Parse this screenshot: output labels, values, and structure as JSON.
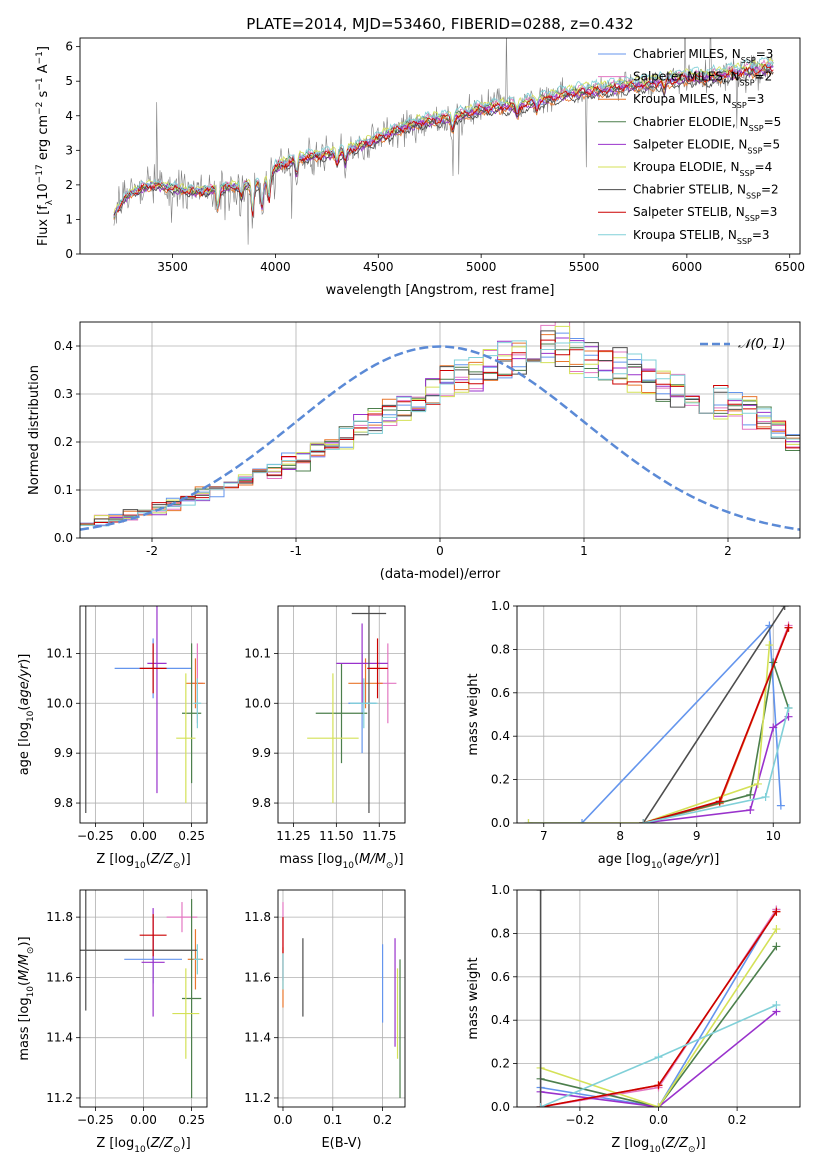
{
  "figure": {
    "title": "PLATE=2014, MJD=53460, FIBERID=0288, z=0.432"
  },
  "chart_data": [
    {
      "id": "spectrum",
      "type": "line",
      "xlabel": "wavelength [Angstrom, rest frame]",
      "ylabel": "Flux [f_λ 10^-17 erg cm^-2 s^-1 A^-1]",
      "xlim": [
        3050,
        6550
      ],
      "ylim": [
        0,
        6.25
      ],
      "xticks": [
        3500,
        4000,
        4500,
        5000,
        5500,
        6000,
        6500
      ],
      "yticks": [
        0,
        1,
        2,
        3,
        4,
        5,
        6
      ],
      "legend_position": "top-right",
      "data_color": "#7f7f7f",
      "data_x_range": [
        3215,
        6420
      ],
      "model_x_range": [
        3215,
        6420
      ],
      "model_shape": [
        [
          3215,
          1.15
        ],
        [
          3280,
          1.7
        ],
        [
          3350,
          1.9
        ],
        [
          3400,
          2.0
        ],
        [
          3500,
          1.9
        ],
        [
          3600,
          1.8
        ],
        [
          3700,
          1.85
        ],
        [
          3800,
          1.95
        ],
        [
          3900,
          2.0
        ],
        [
          3950,
          2.05
        ],
        [
          4000,
          2.5
        ],
        [
          4100,
          2.75
        ],
        [
          4200,
          2.85
        ],
        [
          4300,
          2.9
        ],
        [
          4400,
          3.1
        ],
        [
          4500,
          3.35
        ],
        [
          4600,
          3.6
        ],
        [
          4700,
          3.8
        ],
        [
          4800,
          3.9
        ],
        [
          4900,
          4.0
        ],
        [
          5000,
          4.2
        ],
        [
          5100,
          4.25
        ],
        [
          5200,
          4.3
        ],
        [
          5300,
          4.45
        ],
        [
          5400,
          4.6
        ],
        [
          5500,
          4.7
        ],
        [
          5600,
          4.75
        ],
        [
          5700,
          4.85
        ],
        [
          5800,
          4.9
        ],
        [
          5900,
          5.0
        ],
        [
          6000,
          5.1
        ],
        [
          6100,
          5.1
        ],
        [
          6200,
          5.2
        ],
        [
          6300,
          5.3
        ],
        [
          6420,
          5.4
        ]
      ],
      "series": [
        {
          "name": "Chabrier MILES, N_SSP=3",
          "label_main": "Chabrier MILES, N",
          "label_sub": "SSP",
          "label_tail": "=3",
          "color": "#6495ed",
          "offset": 0.0
        },
        {
          "name": "Salpeter MILES, N_SSP=2",
          "label_main": "Salpeter MILES, N",
          "label_sub": "SSP",
          "label_tail": "=2",
          "color": "#e377c2",
          "offset": 0.02
        },
        {
          "name": "Kroupa MILES, N_SSP=3",
          "label_main": "Kroupa MILES, N",
          "label_sub": "SSP",
          "label_tail": "=3",
          "color": "#e8762c",
          "offset": -0.02
        },
        {
          "name": "Chabrier ELODIE, N_SSP=5",
          "label_main": "Chabrier ELODIE, N",
          "label_sub": "SSP",
          "label_tail": "=5",
          "color": "#4c7f4c",
          "offset": 0.01
        },
        {
          "name": "Salpeter ELODIE, N_SSP=5",
          "label_main": "Salpeter ELODIE, N",
          "label_sub": "SSP",
          "label_tail": "=5",
          "color": "#9932cc",
          "offset": -0.01
        },
        {
          "name": "Kroupa ELODIE, N_SSP=4",
          "label_main": "Kroupa ELODIE, N",
          "label_sub": "SSP",
          "label_tail": "=4",
          "color": "#d4e157",
          "offset": 0.03
        },
        {
          "name": "Chabrier STELIB, N_SSP=2",
          "label_main": "Chabrier STELIB, N",
          "label_sub": "SSP",
          "label_tail": "=2",
          "color": "#4d4d4d",
          "offset": -0.03
        },
        {
          "name": "Salpeter STELIB, N_SSP=3",
          "label_main": "Salpeter STELIB, N",
          "label_sub": "SSP",
          "label_tail": "=3",
          "color": "#cc0000",
          "offset": 0.0
        },
        {
          "name": "Kroupa STELIB, N_SSP=3",
          "label_main": "Kroupa STELIB, N",
          "label_sub": "SSP",
          "label_tail": "=3",
          "color": "#80d0d8",
          "offset": 0.04
        }
      ]
    },
    {
      "id": "residuals",
      "type": "histogram",
      "xlabel": "(data-model)/error",
      "ylabel": "Normed distribution",
      "xlim": [
        -2.5,
        2.5
      ],
      "ylim": [
        0,
        0.45
      ],
      "xticks": [
        -2,
        -1,
        0,
        1,
        2
      ],
      "yticks": [
        0.0,
        0.1,
        0.2,
        0.3,
        0.4
      ],
      "grid": true,
      "legend_position": "top-right",
      "legend": "𝒩(0, 1)",
      "gaussian": {
        "mean": 0,
        "sigma": 1,
        "color": "#5b8ad6"
      },
      "bin_width": 0.1,
      "bin_start": -2.5,
      "base_values": [
        0.03,
        0.035,
        0.04,
        0.045,
        0.05,
        0.06,
        0.07,
        0.08,
        0.09,
        0.1,
        0.11,
        0.12,
        0.13,
        0.14,
        0.15,
        0.16,
        0.18,
        0.2,
        0.21,
        0.23,
        0.25,
        0.26,
        0.27,
        0.29,
        0.3,
        0.32,
        0.33,
        0.34,
        0.35,
        0.36,
        0.37,
        0.38,
        0.39,
        0.4,
        0.38,
        0.37,
        0.36,
        0.35,
        0.34,
        0.33,
        0.32,
        0.31,
        0.3,
        0.29,
        0.28,
        0.27,
        0.26,
        0.24,
        0.22,
        0.2,
        0.19,
        0.18,
        0.17,
        0.16,
        0.15,
        0.14,
        0.13,
        0.12,
        0.11,
        0.1,
        0.095,
        0.09,
        0.085,
        0.08,
        0.075,
        0.07,
        0.065,
        0.06,
        0.055,
        0.05
      ]
    },
    {
      "id": "age-vs-Z",
      "type": "errorbar",
      "xlabel_main": "Z [log",
      "xlabel_sub": "10",
      "xlabel_tail": "(Z/Z",
      "xlabel": "Z [log10(Z/Z⊙)]",
      "ylabel": "age [log10(age/yr)]",
      "xlim": [
        -0.33,
        0.33
      ],
      "ylim": [
        9.76,
        10.195
      ],
      "xticks": [
        -0.25,
        0.0,
        0.25
      ],
      "xtick_labels": [
        "−0.25",
        "0.00",
        "0.25"
      ],
      "yticks": [
        9.8,
        9.9,
        10.0,
        10.1
      ],
      "points": [
        {
          "color": "#6495ed",
          "x": 0.05,
          "xerr": 0.2,
          "y": 10.07,
          "yerr": 0.06
        },
        {
          "color": "#e377c2",
          "x": 0.28,
          "xerr": 0.03,
          "y": 10.04,
          "yerr": 0.08
        },
        {
          "color": "#e8762c",
          "x": 0.27,
          "xerr": 0.05,
          "y": 10.04,
          "yerr": 0.05
        },
        {
          "color": "#4c7f4c",
          "x": 0.25,
          "xerr": 0.05,
          "y": 9.98,
          "yerr": 0.14
        },
        {
          "color": "#9932cc",
          "x": 0.07,
          "xerr": 0.05,
          "y": 10.08,
          "yerr": 0.26
        },
        {
          "color": "#d4e157",
          "x": 0.22,
          "xerr": 0.05,
          "y": 9.93,
          "yerr": 0.13
        },
        {
          "color": "#4d4d4d",
          "x": -0.3,
          "xerr": 0.0,
          "y": 10.18,
          "yerr": 0.4
        },
        {
          "color": "#cc0000",
          "x": 0.05,
          "xerr": 0.07,
          "y": 10.07,
          "yerr": 0.05
        },
        {
          "color": "#80d0d8",
          "x": 0.28,
          "xerr": 0.02,
          "y": 10.0,
          "yerr": 0.05
        }
      ]
    },
    {
      "id": "age-vs-mass",
      "type": "errorbar",
      "xlabel": "mass [log10(M/M⊙)]",
      "xlim": [
        11.16,
        11.9
      ],
      "ylim": [
        9.76,
        10.195
      ],
      "xticks": [
        11.25,
        11.5,
        11.75
      ],
      "xtick_labels": [
        "11.25",
        "11.50",
        "11.75"
      ],
      "yticks": [
        9.8,
        9.9,
        10.0,
        10.1
      ],
      "points": [
        {
          "color": "#6495ed",
          "x": 11.65,
          "xerr": 0.08,
          "y": 10.0,
          "yerr": 0.1
        },
        {
          "color": "#e377c2",
          "x": 11.8,
          "xerr": 0.05,
          "y": 10.04,
          "yerr": 0.08
        },
        {
          "color": "#e8762c",
          "x": 11.67,
          "xerr": 0.1,
          "y": 10.04,
          "yerr": 0.05
        },
        {
          "color": "#4c7f4c",
          "x": 11.53,
          "xerr": 0.15,
          "y": 9.98,
          "yerr": 0.1
        },
        {
          "color": "#9932cc",
          "x": 11.65,
          "xerr": 0.15,
          "y": 10.08,
          "yerr": 0.08
        },
        {
          "color": "#d4e157",
          "x": 11.48,
          "xerr": 0.15,
          "y": 9.93,
          "yerr": 0.13
        },
        {
          "color": "#4d4d4d",
          "x": 11.69,
          "xerr": 0.1,
          "y": 10.18,
          "yerr": 0.4
        },
        {
          "color": "#cc0000",
          "x": 11.74,
          "xerr": 0.06,
          "y": 10.07,
          "yerr": 0.06
        },
        {
          "color": "#80d0d8",
          "x": 11.66,
          "xerr": 0.08,
          "y": 10.0,
          "yerr": 0.05
        }
      ]
    },
    {
      "id": "mass-weight-vs-age",
      "type": "line",
      "xlabel": "age [log10(age/yr)]",
      "ylabel": "mass weight",
      "xlim": [
        6.65,
        10.35
      ],
      "ylim": [
        0,
        1
      ],
      "xticks": [
        7,
        8,
        9,
        10
      ],
      "yticks": [
        0.0,
        0.2,
        0.4,
        0.6,
        0.8,
        1.0
      ],
      "grid": true,
      "series": [
        {
          "color": "#6495ed",
          "x": [
            6.8,
            7.5,
            9.95,
            10.1
          ],
          "y": [
            0,
            0,
            0.91,
            0.08
          ]
        },
        {
          "color": "#e377c2",
          "x": [
            8.3,
            9.3,
            10.2
          ],
          "y": [
            0,
            0.09,
            0.91
          ]
        },
        {
          "color": "#e8762c",
          "x": [
            8.3,
            9.3,
            10.2
          ],
          "y": [
            0,
            0.09,
            0.9
          ]
        },
        {
          "color": "#4c7f4c",
          "x": [
            8.3,
            9.7,
            10.0,
            10.2
          ],
          "y": [
            0,
            0.13,
            0.74,
            0.53
          ]
        },
        {
          "color": "#9932cc",
          "x": [
            8.3,
            9.7,
            10.0,
            10.2
          ],
          "y": [
            0,
            0.06,
            0.44,
            0.49
          ]
        },
        {
          "color": "#d4e157",
          "x": [
            6.8,
            8.3,
            9.8,
            9.95
          ],
          "y": [
            0,
            0,
            0.18,
            0.82
          ]
        },
        {
          "color": "#4d4d4d",
          "x": [
            8.3,
            10.15
          ],
          "y": [
            0,
            1.0
          ]
        },
        {
          "color": "#cc0000",
          "x": [
            8.3,
            9.3,
            10.2
          ],
          "y": [
            0,
            0.1,
            0.9
          ]
        },
        {
          "color": "#80d0d8",
          "x": [
            8.3,
            9.9,
            10.2
          ],
          "y": [
            0,
            0.12,
            0.53
          ]
        }
      ]
    },
    {
      "id": "mass-vs-Z",
      "type": "errorbar",
      "xlabel": "Z [log10(Z/Z⊙)]",
      "ylabel": "mass [log10(M/M⊙)]",
      "xlim": [
        -0.33,
        0.33
      ],
      "ylim": [
        11.17,
        11.89
      ],
      "xticks": [
        -0.25,
        0.0,
        0.25
      ],
      "xtick_labels": [
        "−0.25",
        "0.00",
        "0.25"
      ],
      "yticks": [
        11.2,
        11.4,
        11.6,
        11.8
      ],
      "points": [
        {
          "color": "#6495ed",
          "x": 0.05,
          "xerr": 0.15,
          "y": 11.66,
          "yerr": 0.08
        },
        {
          "color": "#e377c2",
          "x": 0.2,
          "xerr": 0.08,
          "y": 11.8,
          "yerr": 0.05
        },
        {
          "color": "#e8762c",
          "x": 0.27,
          "xerr": 0.04,
          "y": 11.66,
          "yerr": 0.1
        },
        {
          "color": "#4c7f4c",
          "x": 0.25,
          "xerr": 0.05,
          "y": 11.53,
          "yerr": 0.33
        },
        {
          "color": "#9932cc",
          "x": 0.05,
          "xerr": 0.06,
          "y": 11.65,
          "yerr": 0.18
        },
        {
          "color": "#d4e157",
          "x": 0.22,
          "xerr": 0.07,
          "y": 11.48,
          "yerr": 0.15
        },
        {
          "color": "#4d4d4d",
          "x": -0.3,
          "xerr": 0.58,
          "y": 11.69,
          "yerr": 0.2
        },
        {
          "color": "#cc0000",
          "x": 0.05,
          "xerr": 0.07,
          "y": 11.74,
          "yerr": 0.07
        },
        {
          "color": "#80d0d8",
          "x": 0.28,
          "xerr": 0.02,
          "y": 11.66,
          "yerr": 0.05
        }
      ]
    },
    {
      "id": "mass-vs-EBV",
      "type": "errorbar",
      "xlabel": "E(B-V)",
      "xlim": [
        -0.01,
        0.245
      ],
      "ylim": [
        11.17,
        11.89
      ],
      "xticks": [
        0.0,
        0.1,
        0.2
      ],
      "xtick_labels": [
        "0.0",
        "0.1",
        "0.2"
      ],
      "yticks": [
        11.2,
        11.4,
        11.6,
        11.8
      ],
      "points": [
        {
          "color": "#6495ed",
          "x": 0.2,
          "xerr": 0,
          "y": 11.58,
          "yerr": 0.13
        },
        {
          "color": "#e377c2",
          "x": 0.0,
          "xerr": 0,
          "y": 11.72,
          "yerr": 0.13
        },
        {
          "color": "#e8762c",
          "x": 0.0,
          "xerr": 0,
          "y": 11.6,
          "yerr": 0.1
        },
        {
          "color": "#4c7f4c",
          "x": 0.235,
          "xerr": 0,
          "y": 11.43,
          "yerr": 0.23
        },
        {
          "color": "#9932cc",
          "x": 0.225,
          "xerr": 0,
          "y": 11.55,
          "yerr": 0.18
        },
        {
          "color": "#d4e157",
          "x": 0.23,
          "xerr": 0,
          "y": 11.48,
          "yerr": 0.15
        },
        {
          "color": "#4d4d4d",
          "x": 0.04,
          "xerr": 0,
          "y": 11.6,
          "yerr": 0.13
        },
        {
          "color": "#cc0000",
          "x": 0.0,
          "xerr": 0,
          "y": 11.74,
          "yerr": 0.06
        },
        {
          "color": "#80d0d8",
          "x": 0.0,
          "xerr": 0,
          "y": 11.62,
          "yerr": 0.06
        }
      ]
    },
    {
      "id": "mass-weight-vs-Z",
      "type": "line",
      "xlabel": "Z [log10(Z/Z⊙)]",
      "ylabel": "mass weight",
      "xlim": [
        -0.36,
        0.36
      ],
      "ylim": [
        0,
        1
      ],
      "xticks": [
        -0.2,
        0.0,
        0.2
      ],
      "xtick_labels": [
        "−0.2",
        "0.0",
        "0.2"
      ],
      "yticks": [
        0.0,
        0.2,
        0.4,
        0.6,
        0.8,
        1.0
      ],
      "grid": true,
      "series": [
        {
          "color": "#6495ed",
          "x": [
            -0.3,
            0.0,
            0.3
          ],
          "y": [
            0.09,
            0.0,
            0.91
          ]
        },
        {
          "color": "#e377c2",
          "x": [
            -0.3,
            0.0,
            0.3
          ],
          "y": [
            0.0,
            0.09,
            0.91
          ]
        },
        {
          "color": "#e8762c",
          "x": [
            -0.3,
            0.0,
            0.3
          ],
          "y": [
            0.0,
            0.1,
            0.9
          ]
        },
        {
          "color": "#4c7f4c",
          "x": [
            -0.3,
            0.0,
            0.3
          ],
          "y": [
            0.13,
            0.0,
            0.74
          ]
        },
        {
          "color": "#9932cc",
          "x": [
            -0.3,
            0.0,
            0.3
          ],
          "y": [
            0.07,
            0.0,
            0.44
          ]
        },
        {
          "color": "#d4e157",
          "x": [
            -0.3,
            0.0,
            0.3
          ],
          "y": [
            0.18,
            0.0,
            0.82
          ]
        },
        {
          "color": "#4d4d4d",
          "x": [
            -0.3,
            -0.3
          ],
          "y": [
            0.0,
            1.0
          ]
        },
        {
          "color": "#cc0000",
          "x": [
            -0.3,
            0.0,
            0.3
          ],
          "y": [
            0.0,
            0.1,
            0.9
          ]
        },
        {
          "color": "#80d0d8",
          "x": [
            -0.3,
            0.0,
            0.3
          ],
          "y": [
            0.0,
            0.23,
            0.47
          ]
        }
      ]
    }
  ]
}
